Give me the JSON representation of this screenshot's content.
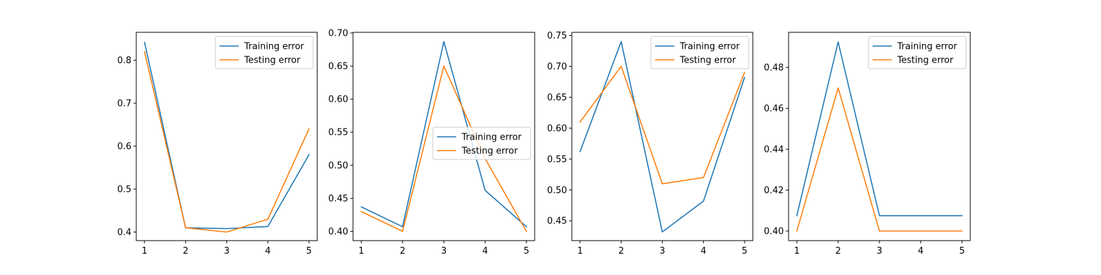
{
  "chart_data": [
    {
      "type": "line",
      "x": [
        1,
        2,
        3,
        4,
        5
      ],
      "ylim": [
        0.38,
        0.865
      ],
      "yticks": [
        0.4,
        0.5,
        0.6,
        0.7,
        0.8
      ],
      "ytick_labels": [
        "0.4",
        "0.5",
        "0.6",
        "0.7",
        "0.8"
      ],
      "legend_loc": "upper-right",
      "series": [
        {
          "name": "Training error",
          "color": "#1f77b4",
          "values": [
            0.842,
            0.41,
            0.408,
            0.413,
            0.58
          ]
        },
        {
          "name": "Testing error",
          "color": "#ff7f0e",
          "values": [
            0.82,
            0.41,
            0.4,
            0.43,
            0.64
          ]
        }
      ]
    },
    {
      "type": "line",
      "x": [
        1,
        2,
        3,
        4,
        5
      ],
      "ylim": [
        0.386,
        0.701
      ],
      "yticks": [
        0.4,
        0.45,
        0.5,
        0.55,
        0.6,
        0.65,
        0.7
      ],
      "ytick_labels": [
        "0.40",
        "0.45",
        "0.50",
        "0.55",
        "0.60",
        "0.65",
        "0.70"
      ],
      "legend_loc": "center-right",
      "series": [
        {
          "name": "Training error",
          "color": "#1f77b4",
          "values": [
            0.437,
            0.407,
            0.687,
            0.462,
            0.407
          ]
        },
        {
          "name": "Testing error",
          "color": "#ff7f0e",
          "values": [
            0.43,
            0.4,
            0.65,
            0.51,
            0.4
          ]
        }
      ]
    },
    {
      "type": "line",
      "x": [
        1,
        2,
        3,
        4,
        5
      ],
      "ylim": [
        0.418,
        0.755
      ],
      "yticks": [
        0.45,
        0.5,
        0.55,
        0.6,
        0.65,
        0.7,
        0.75
      ],
      "ytick_labels": [
        "0.45",
        "0.50",
        "0.55",
        "0.60",
        "0.65",
        "0.70",
        "0.75"
      ],
      "legend_loc": "upper-right",
      "series": [
        {
          "name": "Training error",
          "color": "#1f77b4",
          "values": [
            0.562,
            0.74,
            0.432,
            0.482,
            0.682
          ]
        },
        {
          "name": "Testing error",
          "color": "#ff7f0e",
          "values": [
            0.61,
            0.7,
            0.51,
            0.52,
            0.69
          ]
        }
      ]
    },
    {
      "type": "line",
      "x": [
        1,
        2,
        3,
        4,
        5
      ],
      "ylim": [
        0.3953,
        0.4972
      ],
      "yticks": [
        0.4,
        0.42,
        0.44,
        0.46,
        0.48
      ],
      "ytick_labels": [
        "0.40",
        "0.42",
        "0.44",
        "0.46",
        "0.48"
      ],
      "legend_loc": "upper-right",
      "series": [
        {
          "name": "Training error",
          "color": "#1f77b4",
          "values": [
            0.4075,
            0.4925,
            0.4075,
            0.4075,
            0.4075
          ]
        },
        {
          "name": "Testing error",
          "color": "#ff7f0e",
          "values": [
            0.4,
            0.47,
            0.4,
            0.4,
            0.4
          ]
        }
      ]
    }
  ]
}
